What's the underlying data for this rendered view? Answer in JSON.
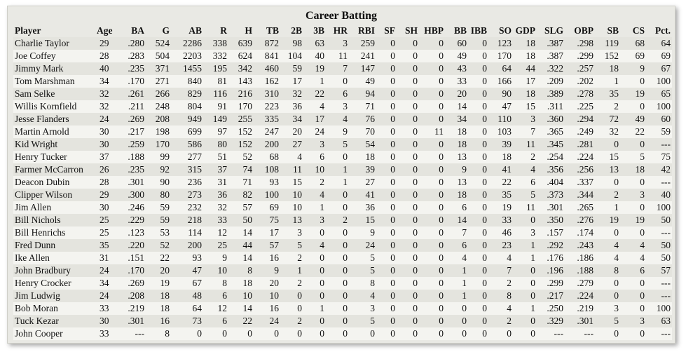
{
  "title": "Career Batting",
  "table": {
    "columns": [
      "Player",
      "Age",
      "BA",
      "G",
      "AB",
      "R",
      "H",
      "TB",
      "2B",
      "3B",
      "HR",
      "RBI",
      "SF",
      "SH",
      "HBP",
      "BB",
      "IBB",
      "SO",
      "GDP",
      "SLG",
      "OBP",
      "SB",
      "CS",
      "Pct."
    ],
    "rows": [
      [
        "Charlie Taylor",
        29,
        ".280",
        524,
        2286,
        338,
        639,
        872,
        98,
        63,
        3,
        259,
        0,
        0,
        0,
        60,
        0,
        123,
        18,
        ".387",
        ".298",
        119,
        68,
        64
      ],
      [
        "Joe Coffey",
        28,
        ".283",
        504,
        2203,
        332,
        624,
        841,
        104,
        40,
        11,
        241,
        0,
        0,
        0,
        49,
        0,
        170,
        18,
        ".387",
        ".299",
        152,
        69,
        69
      ],
      [
        "Jimmy Mark",
        40,
        ".235",
        371,
        1455,
        195,
        342,
        460,
        59,
        19,
        7,
        147,
        0,
        0,
        0,
        43,
        0,
        64,
        44,
        ".322",
        ".257",
        18,
        9,
        67
      ],
      [
        "Tom Marshman",
        34,
        ".170",
        271,
        840,
        81,
        143,
        162,
        17,
        1,
        0,
        49,
        0,
        0,
        0,
        33,
        0,
        166,
        17,
        ".209",
        ".202",
        1,
        0,
        100
      ],
      [
        "Sam Selke",
        32,
        ".261",
        266,
        829,
        116,
        216,
        310,
        32,
        22,
        6,
        94,
        0,
        0,
        0,
        20,
        0,
        90,
        18,
        ".389",
        ".278",
        35,
        19,
        65
      ],
      [
        "Willis Kornfield",
        32,
        ".211",
        248,
        804,
        91,
        170,
        223,
        36,
        4,
        3,
        71,
        0,
        0,
        0,
        14,
        0,
        47,
        15,
        ".311",
        ".225",
        2,
        0,
        100
      ],
      [
        "Jesse Flanders",
        24,
        ".269",
        208,
        949,
        149,
        255,
        335,
        34,
        17,
        4,
        76,
        0,
        0,
        0,
        34,
        0,
        110,
        3,
        ".360",
        ".294",
        72,
        49,
        60
      ],
      [
        "Martin Arnold",
        30,
        ".217",
        198,
        699,
        97,
        152,
        247,
        20,
        24,
        9,
        70,
        0,
        0,
        11,
        18,
        0,
        103,
        7,
        ".365",
        ".249",
        32,
        22,
        59
      ],
      [
        "Kid Wright",
        30,
        ".259",
        170,
        586,
        80,
        152,
        200,
        27,
        3,
        5,
        54,
        0,
        0,
        0,
        18,
        0,
        39,
        11,
        ".345",
        ".281",
        0,
        0,
        "---"
      ],
      [
        "Henry Tucker",
        37,
        ".188",
        99,
        277,
        51,
        52,
        68,
        4,
        6,
        0,
        18,
        0,
        0,
        0,
        13,
        0,
        18,
        2,
        ".254",
        ".224",
        15,
        5,
        75
      ],
      [
        "Farmer McCarron",
        26,
        ".235",
        92,
        315,
        37,
        74,
        108,
        11,
        10,
        1,
        39,
        0,
        0,
        0,
        9,
        0,
        41,
        4,
        ".356",
        ".256",
        13,
        18,
        42
      ],
      [
        "Deacon Dubin",
        28,
        ".301",
        90,
        236,
        31,
        71,
        93,
        15,
        2,
        1,
        27,
        0,
        0,
        0,
        13,
        0,
        22,
        6,
        ".404",
        ".337",
        0,
        0,
        "---"
      ],
      [
        "Clipper Wilson",
        29,
        ".300",
        80,
        273,
        36,
        82,
        100,
        10,
        4,
        0,
        41,
        0,
        0,
        0,
        18,
        0,
        35,
        5,
        ".373",
        ".344",
        2,
        3,
        40
      ],
      [
        "Jim Allen",
        30,
        ".246",
        59,
        232,
        32,
        57,
        69,
        10,
        1,
        0,
        36,
        0,
        0,
        0,
        6,
        0,
        19,
        11,
        ".301",
        ".265",
        1,
        0,
        100
      ],
      [
        "Bill Nichols",
        25,
        ".229",
        59,
        218,
        33,
        50,
        75,
        13,
        3,
        2,
        15,
        0,
        0,
        0,
        14,
        0,
        33,
        0,
        ".350",
        ".276",
        19,
        19,
        50
      ],
      [
        "Bill Henrichs",
        25,
        ".123",
        53,
        114,
        12,
        14,
        17,
        3,
        0,
        0,
        9,
        0,
        0,
        0,
        7,
        0,
        46,
        3,
        ".157",
        ".174",
        0,
        0,
        "---"
      ],
      [
        "Fred Dunn",
        35,
        ".220",
        52,
        200,
        25,
        44,
        57,
        5,
        4,
        0,
        24,
        0,
        0,
        0,
        6,
        0,
        23,
        1,
        ".292",
        ".243",
        4,
        4,
        50
      ],
      [
        "Ike Allen",
        31,
        ".151",
        22,
        93,
        9,
        14,
        16,
        2,
        0,
        0,
        5,
        0,
        0,
        0,
        4,
        0,
        4,
        1,
        ".176",
        ".186",
        4,
        4,
        50
      ],
      [
        "John Bradbury",
        24,
        ".170",
        20,
        47,
        10,
        8,
        9,
        1,
        0,
        0,
        5,
        0,
        0,
        0,
        1,
        0,
        7,
        0,
        ".196",
        ".188",
        8,
        6,
        57
      ],
      [
        "Henry Crocker",
        34,
        ".269",
        19,
        67,
        8,
        18,
        20,
        2,
        0,
        0,
        8,
        0,
        0,
        0,
        1,
        0,
        2,
        0,
        ".299",
        ".279",
        0,
        0,
        "---"
      ],
      [
        "Jim Ludwig",
        24,
        ".208",
        18,
        48,
        6,
        10,
        10,
        0,
        0,
        0,
        4,
        0,
        0,
        0,
        1,
        0,
        8,
        0,
        ".217",
        ".224",
        0,
        0,
        "---"
      ],
      [
        "Bob Moran",
        33,
        ".219",
        18,
        64,
        12,
        14,
        16,
        0,
        1,
        0,
        3,
        0,
        0,
        0,
        0,
        0,
        4,
        1,
        ".250",
        ".219",
        3,
        0,
        100
      ],
      [
        "Tuck Kezar",
        30,
        ".301",
        16,
        73,
        6,
        22,
        24,
        2,
        0,
        0,
        5,
        0,
        0,
        0,
        0,
        0,
        2,
        0,
        ".329",
        ".301",
        5,
        3,
        63
      ],
      [
        "John Cooper",
        33,
        "---",
        8,
        0,
        0,
        0,
        0,
        0,
        0,
        0,
        0,
        0,
        0,
        0,
        0,
        0,
        0,
        0,
        "---",
        "---",
        0,
        0,
        "---"
      ]
    ]
  }
}
